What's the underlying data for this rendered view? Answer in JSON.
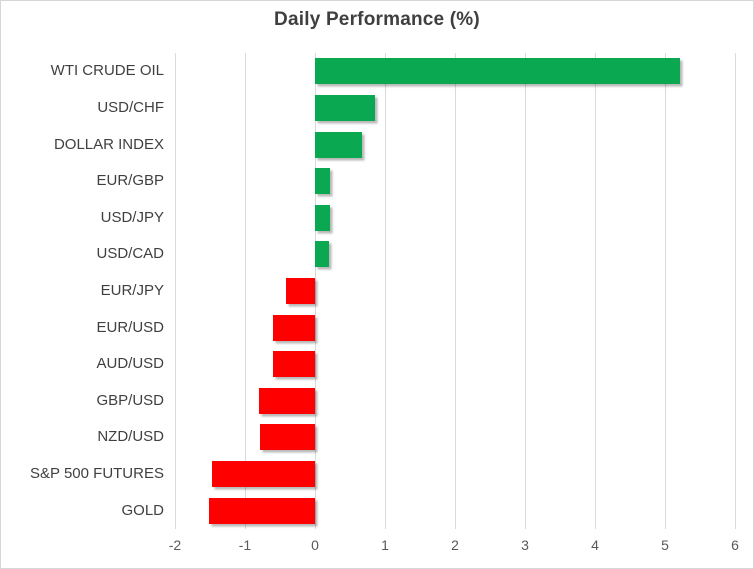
{
  "chart_data": {
    "type": "bar",
    "orientation": "horizontal",
    "title": "Daily Performance (%)",
    "categories": [
      "WTI CRUDE OIL",
      "USD/CHF",
      "DOLLAR INDEX",
      "EUR/GBP",
      "USD/JPY",
      "USD/CAD",
      "EUR/JPY",
      "EUR/USD",
      "AUD/USD",
      "GBP/USD",
      "NZD/USD",
      "S&P 500 FUTURES",
      "GOLD"
    ],
    "values": [
      5.22,
      0.85,
      0.67,
      0.22,
      0.21,
      0.2,
      -0.42,
      -0.6,
      -0.6,
      -0.8,
      -0.79,
      -1.47,
      -1.52
    ],
    "xlabel": "",
    "ylabel": "",
    "xlim": [
      -2,
      6
    ],
    "xticks": [
      -2,
      -1,
      0,
      1,
      2,
      3,
      4,
      5,
      6
    ],
    "grid": "vertical-on",
    "legend": "none",
    "colors": {
      "positive_bar": "#0aa850",
      "negative_bar": "#ff0000",
      "gridline": "#d9d9d9",
      "title_text": "#3f3f3f",
      "category_text": "#404040",
      "axis_text": "#595959",
      "border": "#d7d7d7",
      "background": "#ffffff"
    }
  }
}
